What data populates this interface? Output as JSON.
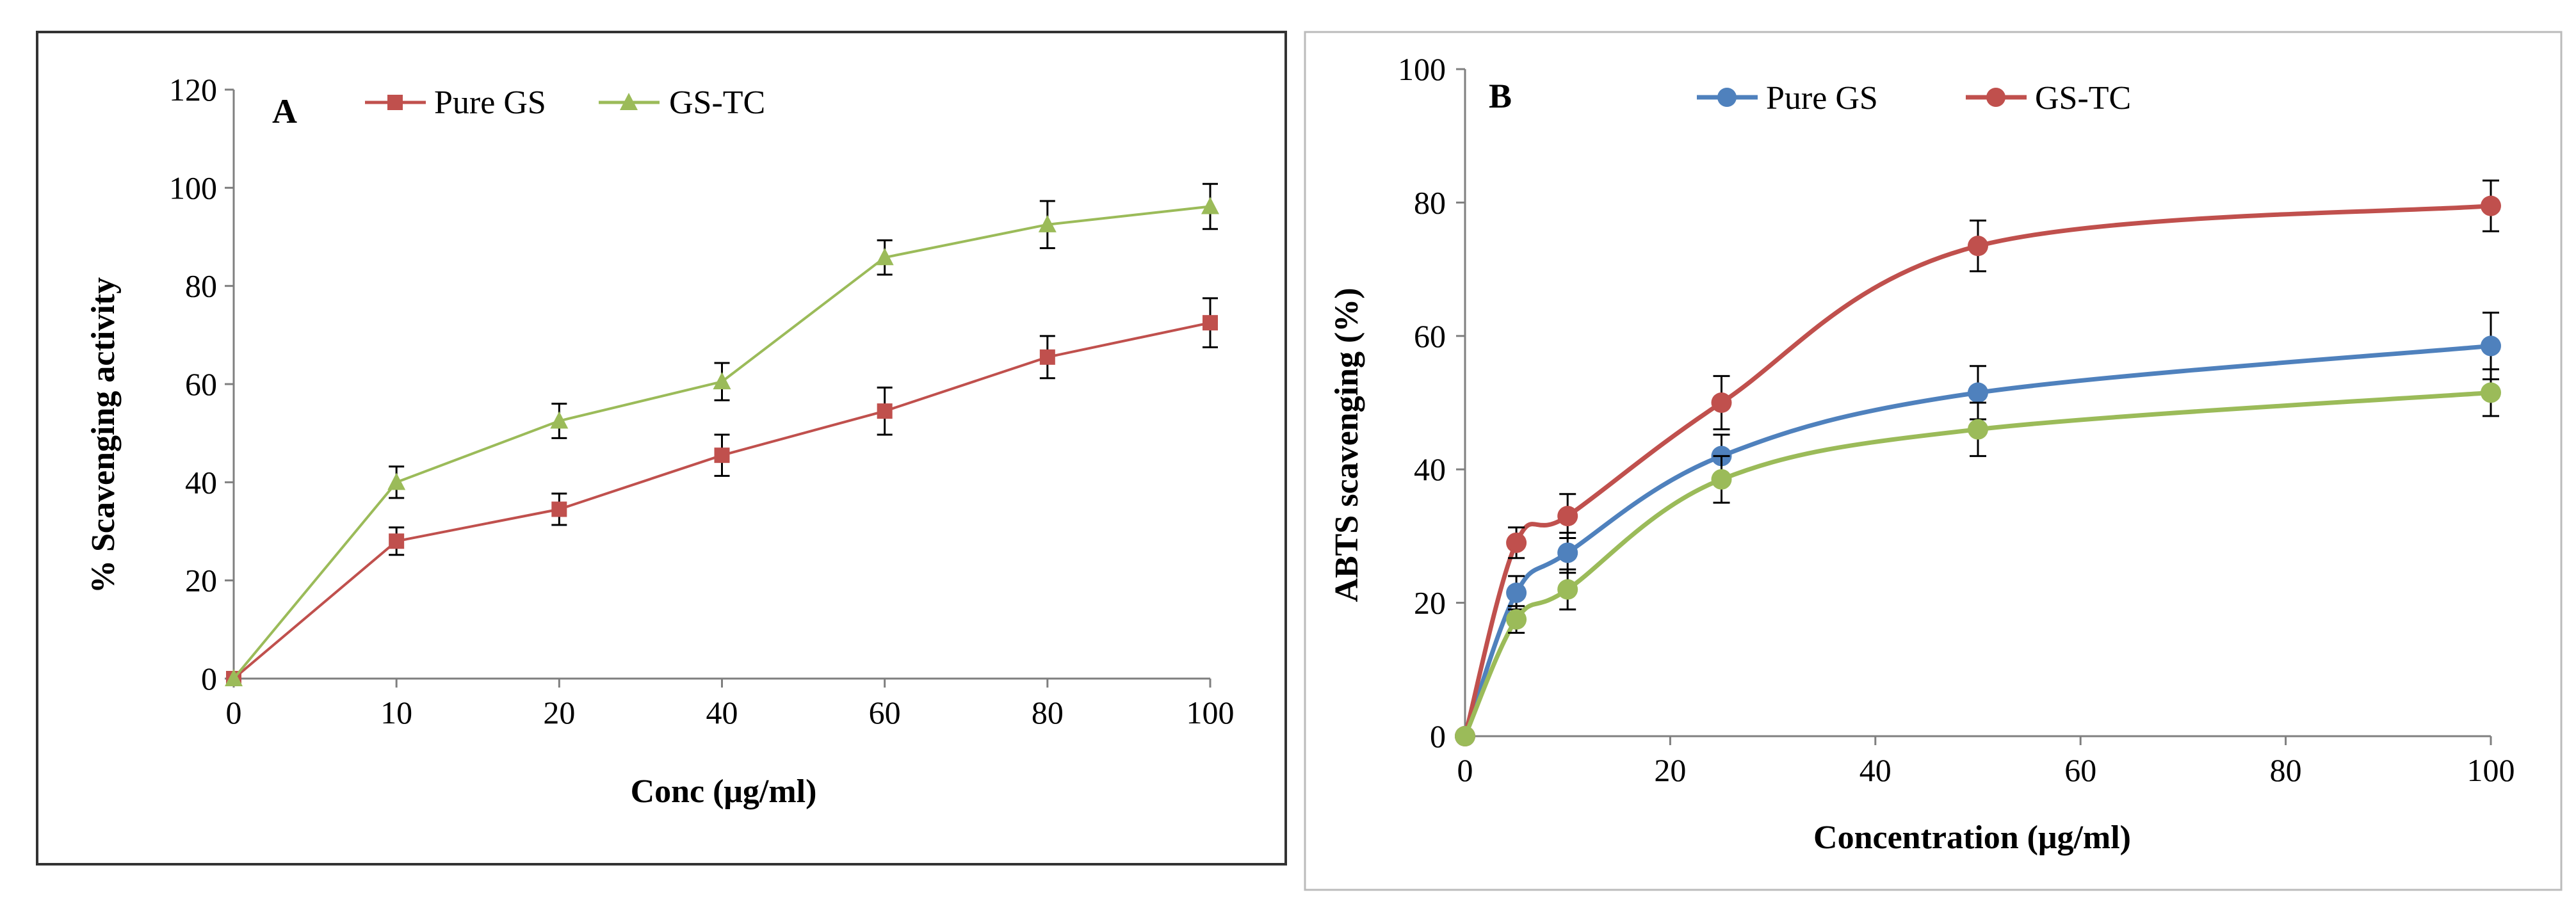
{
  "chart_data": [
    {
      "type": "line",
      "panel_label": "A",
      "title": "",
      "xlabel": "Conc  (μg/ml)",
      "ylabel": "%  Scavenging activity",
      "categories": [
        "0",
        "10",
        "20",
        "40",
        "60",
        "80",
        "100"
      ],
      "y_ticks": [
        "0",
        "20",
        "40",
        "60",
        "80",
        "100",
        "120"
      ],
      "ylim": [
        0,
        120
      ],
      "legend_position": "top-center",
      "series": [
        {
          "name": "Pure GS",
          "color": "#c0504d",
          "marker": "square",
          "values": [
            0,
            28,
            34.5,
            45.5,
            54.5,
            65.5,
            72.5
          ],
          "errors": [
            0,
            2.8,
            3.2,
            4.2,
            4.8,
            4.3,
            5.0
          ]
        },
        {
          "name": "GS-TC",
          "color": "#9bbb59",
          "marker": "triangle",
          "values": [
            0,
            40,
            52.5,
            60.5,
            85.8,
            92.5,
            96.2
          ],
          "errors": [
            0,
            3.2,
            3.5,
            3.8,
            3.5,
            4.8,
            4.6
          ]
        }
      ]
    },
    {
      "type": "line",
      "panel_label": "B",
      "title": "",
      "xlabel": "Concentration  (μg/ml)",
      "ylabel": "ABTS scavenging (%)",
      "x_ticks": [
        "0",
        "20",
        "40",
        "60",
        "80",
        "100"
      ],
      "y_ticks": [
        "0",
        "20",
        "40",
        "60",
        "80",
        "100"
      ],
      "xlim": [
        0,
        100
      ],
      "ylim": [
        0,
        100
      ],
      "legend_position": "top-center",
      "series": [
        {
          "name": "Pure GS",
          "color": "#4f81bd",
          "marker": "circle",
          "x": [
            0,
            5,
            10,
            25,
            50,
            100
          ],
          "values": [
            0,
            21.5,
            27.5,
            42,
            51.5,
            58.5
          ],
          "errors": [
            0,
            2.5,
            3.0,
            3.2,
            4.0,
            5.0
          ],
          "in_legend": true
        },
        {
          "name": "GS-TC",
          "color": "#c0504d",
          "marker": "circle",
          "x": [
            0,
            5,
            10,
            25,
            50,
            100
          ],
          "values": [
            0,
            29,
            33,
            50,
            73.5,
            79.5
          ],
          "errors": [
            0,
            2.3,
            3.3,
            4.0,
            3.8,
            3.8
          ],
          "in_legend": true
        },
        {
          "name": "",
          "color": "#9bbb59",
          "marker": "circle",
          "x": [
            0,
            5,
            10,
            25,
            50,
            100
          ],
          "values": [
            0,
            17.5,
            22,
            38.5,
            46,
            51.5
          ],
          "errors": [
            0,
            2.0,
            3.0,
            3.5,
            4.0,
            3.5
          ],
          "in_legend": false
        }
      ]
    }
  ]
}
